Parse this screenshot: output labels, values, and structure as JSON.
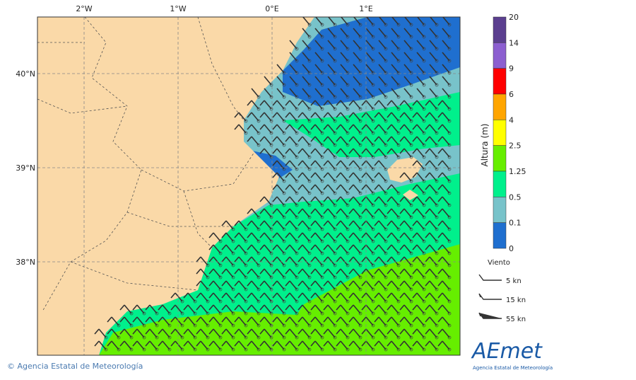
{
  "map": {
    "lon_labels": [
      "2°W",
      "1°W",
      "0°E",
      "1°E"
    ],
    "lat_labels": [
      "40°N",
      "39°N",
      "38°N"
    ],
    "land_color": "#fad9a8"
  },
  "colorbar": {
    "title": "Altura (m)",
    "labels": [
      "20",
      "14",
      "9",
      "6",
      "4",
      "2.5",
      "1.25",
      "0.5",
      "0.1",
      "0"
    ],
    "colors": [
      "#5b3f8f",
      "#8c5fd0",
      "#ff0000",
      "#ffa500",
      "#ffff00",
      "#66ee00",
      "#00f08c",
      "#78c3ca",
      "#1f6fcf"
    ]
  },
  "legend": {
    "title": "Viento",
    "items": [
      "5 kn",
      "15 kn",
      "55 kn"
    ]
  },
  "footer": "© Agencia Estatal de Meteorología",
  "logo": {
    "name": "AEmet",
    "subtitle": "Agencia Estatal de Meteorología"
  }
}
